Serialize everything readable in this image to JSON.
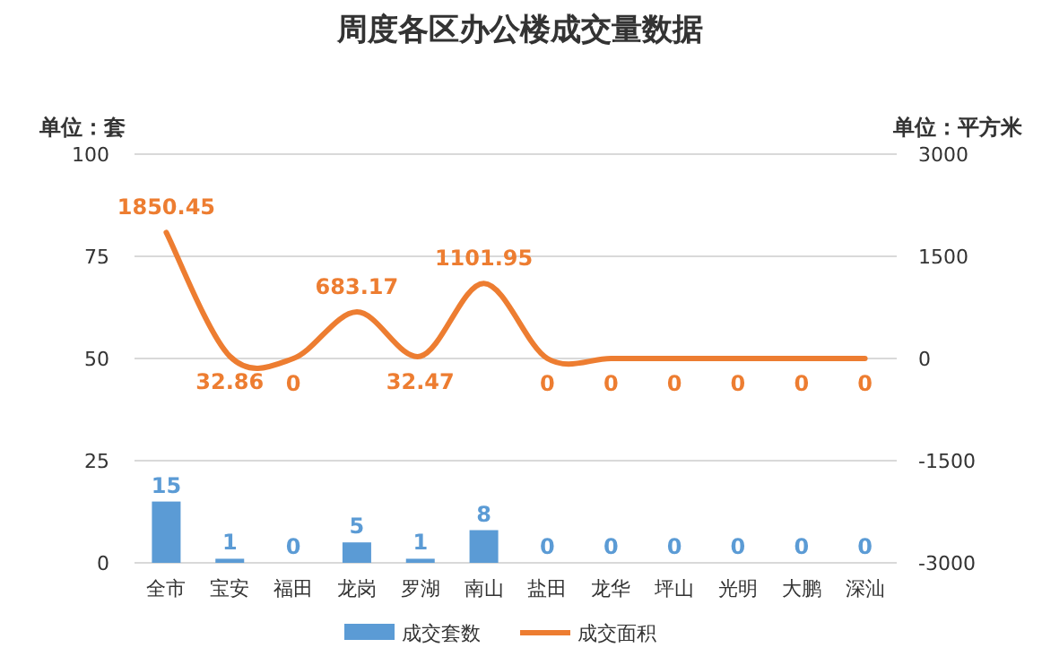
{
  "chart_data": {
    "type": "bar",
    "title": "周度各区办公楼成交量数据",
    "ylabel": "单位：套",
    "y2label": "单位：平方米",
    "categories": [
      "全市",
      "宝安",
      "福田",
      "龙岗",
      "罗湖",
      "南山",
      "盐田",
      "龙华",
      "坪山",
      "光明",
      "大鹏",
      "深汕"
    ],
    "series": [
      {
        "name": "成交套数",
        "color": "#5b9bd5",
        "values": [
          15,
          1,
          0,
          5,
          1,
          8,
          0,
          0,
          0,
          0,
          0,
          0
        ]
      },
      {
        "name": "成交面积",
        "type": "line",
        "axis": "y2",
        "color": "#ed7d31",
        "values": [
          1850.45,
          32.86,
          0,
          683.17,
          32.47,
          1101.95,
          0,
          0,
          0,
          0,
          0,
          0
        ]
      }
    ],
    "ylim": [
      0,
      100
    ],
    "yticks": [
      0,
      25,
      50,
      75,
      100
    ],
    "y2lim": [
      -3000,
      3000
    ],
    "y2ticks": [
      -3000,
      -1500,
      0,
      1500,
      3000
    ],
    "grid": "y",
    "legend": "bottom",
    "data_labels": true
  }
}
